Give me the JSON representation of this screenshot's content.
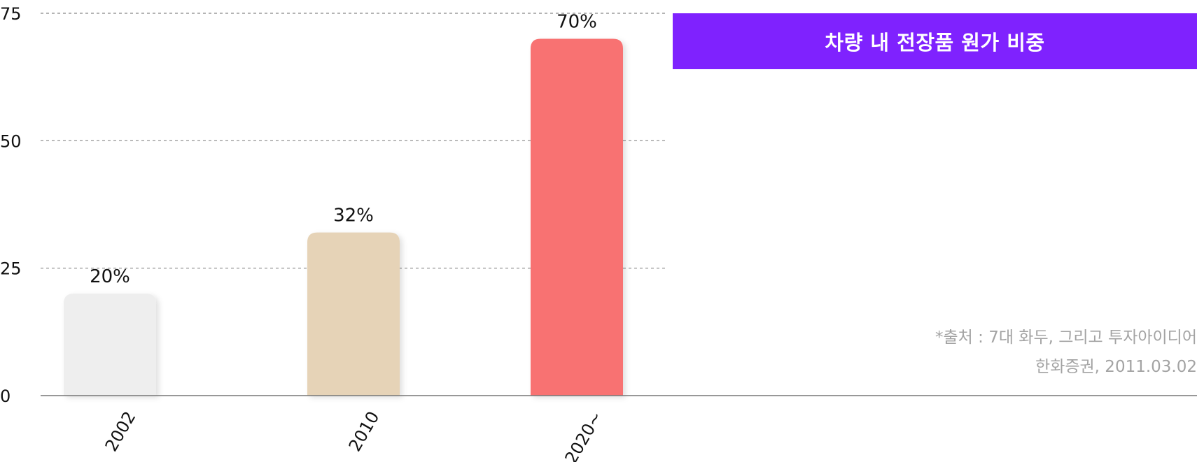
{
  "chart_data": {
    "type": "bar",
    "title": "차량 내 전장품 원가 비중",
    "categories": [
      "2002",
      "2010",
      "2020~"
    ],
    "values": [
      20,
      32,
      70
    ],
    "data_labels": [
      "20%",
      "32%",
      "70%"
    ],
    "bar_colors": [
      "#eeeeee",
      "#e6d3b7",
      "#f87272"
    ],
    "xlabel": "",
    "ylabel": "",
    "ylim": [
      0,
      75
    ],
    "yticks": [
      "0",
      "25",
      "50",
      "75"
    ],
    "grid": true,
    "source_lines": [
      "*출처 : 7대 화두, 그리고 투자아이디어",
      "한화증권,  2011.03.02"
    ]
  },
  "colors": {
    "title_background": "#7f22fe",
    "title_text": "#ffffff",
    "source_text": "#a3a3a3"
  }
}
